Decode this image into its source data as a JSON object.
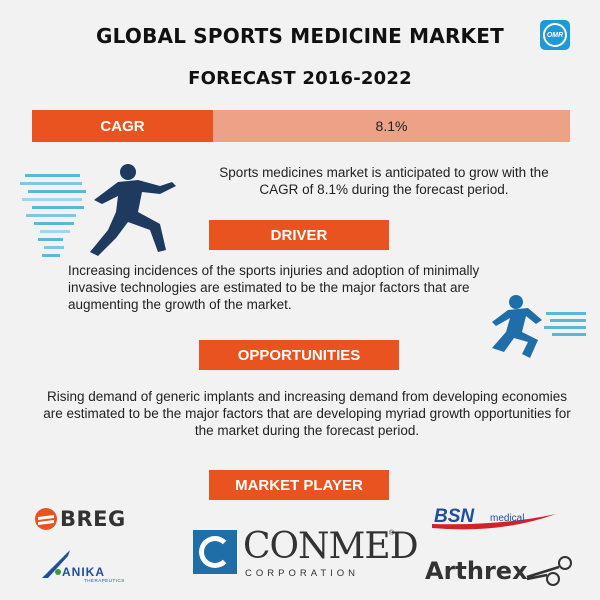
{
  "header": {
    "title": "GLOBAL SPORTS MEDICINE MARKET",
    "subtitle": "FORECAST 2016-2022",
    "logo_text": "OMR"
  },
  "cagr": {
    "label": "CAGR",
    "value": "8.1%",
    "description": "Sports medicines market is anticipated to grow with the CAGR of 8.1% during the forecast period."
  },
  "driver": {
    "label": "DRIVER",
    "description": "Increasing incidences of the sports injuries and adoption of minimally invasive technologies are estimated to be the major factors that are augmenting the growth of the market."
  },
  "opportunities": {
    "label": "OPPORTUNITIES",
    "description": "Rising demand of generic implants and increasing demand from developing economies are estimated to be the major factors that are developing myriad growth opportunities for the market during the forecast period."
  },
  "market_player": {
    "label": "MARKET PLAYER",
    "companies": {
      "breg": "BREG",
      "conmed": "CONMED",
      "conmed_sub": "CORPORATION",
      "bsn": "BSN",
      "bsn_sub": "medical",
      "anika": "ANIKA",
      "anika_sub": "THERAPEUTICS",
      "arthrex": "Arthrex"
    }
  },
  "colors": {
    "accent": "#e8531f",
    "accent_light": "#eda287",
    "runner_dark": "#1e3a5f",
    "runner_blue": "#1f6ea8",
    "background": "#f2f2f2"
  },
  "icons": {
    "omr": "omr-logo-icon",
    "sprinter": "sprinter-icon",
    "runner": "runner-icon"
  }
}
